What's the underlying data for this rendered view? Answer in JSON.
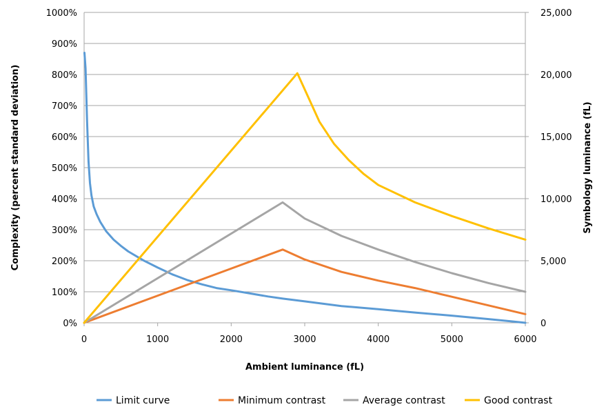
{
  "chart_data": {
    "type": "line",
    "title": "",
    "xlabel": "Ambient luminance  (fL)",
    "ylabel_left": "Complexity (percent standard deviation)",
    "ylabel_right": "Symbology luminance  (fL)",
    "xlim": [
      0,
      6000
    ],
    "ylim_left": [
      0,
      10
    ],
    "ylim_right": [
      0,
      25000
    ],
    "x_ticks": [
      "0",
      "1000",
      "2000",
      "3000",
      "4000",
      "5000",
      "6000"
    ],
    "y_left_ticks": [
      "0%",
      "100%",
      "200%",
      "300%",
      "400%",
      "500%",
      "600%",
      "700%",
      "800%",
      "900%",
      "1000%"
    ],
    "y_right_ticks": [
      "0",
      "5,000",
      "10,000",
      "15,000",
      "20,000",
      "25,000"
    ],
    "grid": true,
    "legend_position": "bottom",
    "series": [
      {
        "name": "Limit curve",
        "axis": "left",
        "color": "#5B9BD5",
        "points": [
          [
            5,
            8.7
          ],
          [
            20,
            8.2
          ],
          [
            40,
            6.5
          ],
          [
            60,
            5.2
          ],
          [
            80,
            4.5
          ],
          [
            100,
            4.1
          ],
          [
            130,
            3.75
          ],
          [
            170,
            3.5
          ],
          [
            220,
            3.25
          ],
          [
            300,
            2.95
          ],
          [
            400,
            2.68
          ],
          [
            500,
            2.48
          ],
          [
            600,
            2.3
          ],
          [
            800,
            2.02
          ],
          [
            1000,
            1.78
          ],
          [
            1200,
            1.56
          ],
          [
            1400,
            1.38
          ],
          [
            1600,
            1.24
          ],
          [
            1800,
            1.12
          ],
          [
            2000,
            1.05
          ],
          [
            2200,
            0.97
          ],
          [
            2500,
            0.85
          ],
          [
            2700,
            0.78
          ],
          [
            3000,
            0.69
          ],
          [
            3500,
            0.54
          ],
          [
            4000,
            0.44
          ],
          [
            4500,
            0.33
          ],
          [
            5000,
            0.23
          ],
          [
            5500,
            0.12
          ],
          [
            5800,
            0.05
          ],
          [
            6000,
            0
          ]
        ]
      },
      {
        "name": "Minimum contrast",
        "axis": "right",
        "color": "#ED7D31",
        "points": [
          [
            0,
            0
          ],
          [
            2700,
            5900
          ],
          [
            3000,
            5100
          ],
          [
            3500,
            4100
          ],
          [
            4000,
            3400
          ],
          [
            4500,
            2800
          ],
          [
            5000,
            2100
          ],
          [
            5500,
            1400
          ],
          [
            6000,
            700
          ]
        ]
      },
      {
        "name": "Average contrast",
        "axis": "right",
        "color": "#A5A5A5",
        "points": [
          [
            0,
            0
          ],
          [
            2700,
            9700
          ],
          [
            3000,
            8400
          ],
          [
            3500,
            7000
          ],
          [
            4000,
            5900
          ],
          [
            4500,
            4900
          ],
          [
            5000,
            4000
          ],
          [
            5500,
            3200
          ],
          [
            6000,
            2500
          ]
        ]
      },
      {
        "name": "Good contrast",
        "axis": "right",
        "color": "#FFC000",
        "points": [
          [
            0,
            0
          ],
          [
            2900,
            20100
          ],
          [
            3000,
            18800
          ],
          [
            3200,
            16200
          ],
          [
            3400,
            14400
          ],
          [
            3600,
            13100
          ],
          [
            3800,
            12000
          ],
          [
            4000,
            11100
          ],
          [
            4500,
            9700
          ],
          [
            5000,
            8600
          ],
          [
            5500,
            7600
          ],
          [
            6000,
            6700
          ]
        ]
      }
    ]
  }
}
